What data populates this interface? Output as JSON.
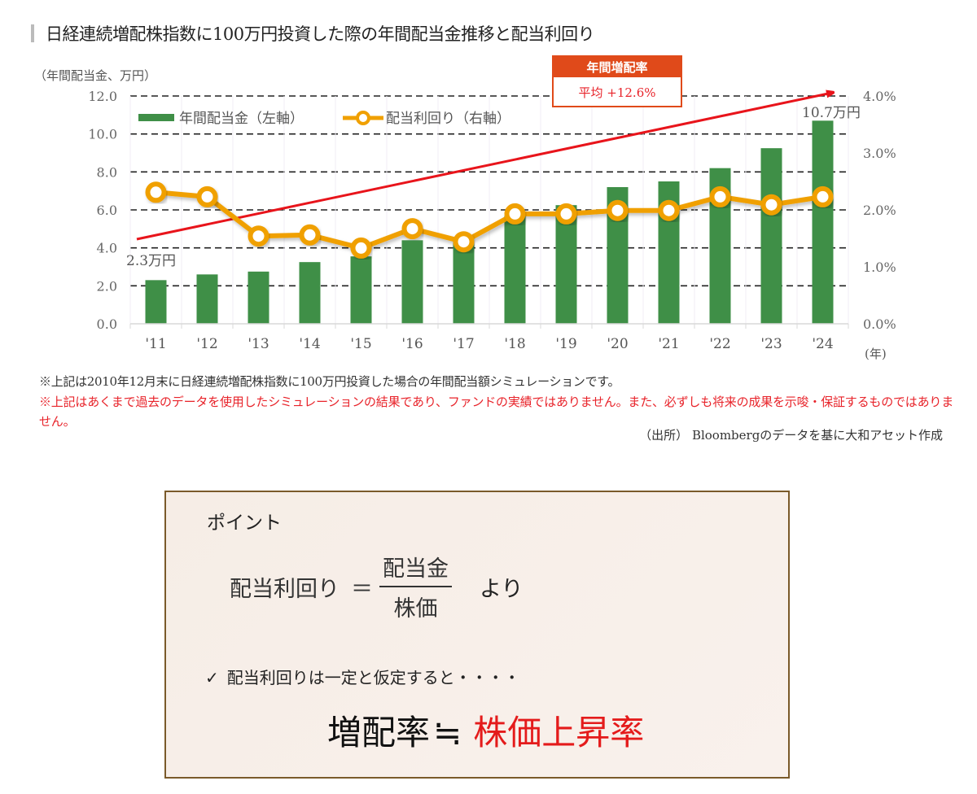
{
  "header": {
    "title": "日経連続増配株指数に100万円投資した際の年間配当金推移と配当利回り"
  },
  "chart_data": {
    "type": "bar+line",
    "title": "日経連続増配株指数に100万円投資した際の年間配当金推移と配当利回り",
    "left_axis_label": "（年間配当金、万円）",
    "x_unit_label": "(年)",
    "categories": [
      "'11",
      "'12",
      "'13",
      "'14",
      "'15",
      "'16",
      "'17",
      "'18",
      "'19",
      "'20",
      "'21",
      "'22",
      "'23",
      "'24"
    ],
    "left_ticks": [
      "0.0",
      "2.0",
      "4.0",
      "6.0",
      "8.0",
      "10.0",
      "12.0"
    ],
    "right_ticks": [
      "0.0%",
      "1.0%",
      "2.0%",
      "3.0%",
      "4.0%"
    ],
    "ylim_left": [
      0,
      12
    ],
    "ylim_right": [
      0,
      4
    ],
    "grid": "dashed horizontal",
    "legend_position": "top-left inside",
    "series": [
      {
        "name": "年間配当金（左軸）",
        "type": "bar",
        "axis": "left",
        "color": "#3f8f47",
        "values": [
          2.3,
          2.6,
          2.75,
          3.25,
          3.55,
          4.4,
          4.3,
          5.7,
          6.25,
          7.2,
          7.5,
          8.2,
          9.25,
          10.7
        ]
      },
      {
        "name": "配当利回り（右軸）",
        "type": "line",
        "axis": "right",
        "color": "#f0a000",
        "values": [
          2.31,
          2.23,
          1.54,
          1.56,
          1.33,
          1.67,
          1.44,
          1.93,
          1.93,
          1.99,
          1.99,
          2.23,
          2.09,
          2.23
        ]
      }
    ],
    "annotations": {
      "first_bar_label": "2.3万円",
      "last_bar_label": "10.7万円",
      "trend_arrow_color": "#e8141b",
      "callout_title": "年間増配率",
      "callout_value": "平均 +12.6%"
    }
  },
  "notes": {
    "note1": "※上記は2010年12月末に日経連続増配株指数に100万円投資した場合の年間配当額シミュレーションです。",
    "note2": "※上記はあくまで過去のデータを使用したシミュレーションの結果であり、ファンドの実績ではありません。また、必ずしも将来の成果を示唆・保証するものではありません。",
    "source": "（出所） Bloombergのデータを基に大和アセット作成"
  },
  "point_box": {
    "title": "ポイント",
    "formula_lhs": "配当利回り",
    "formula_eq": "＝",
    "formula_numerator": "配当金",
    "formula_denominator": "株価",
    "formula_suffix": "より",
    "check_mark": "✓",
    "check_text": "配当利回りは一定と仮定すると・・・・",
    "conclusion_lhs": "増配率",
    "conclusion_approx": "≒",
    "conclusion_rhs": "株価上昇率"
  },
  "colors": {
    "bar": "#3f8f47",
    "line": "#f0a000",
    "trend": "#e8141b",
    "callout": "#e04a1a",
    "warning_text": "#e8232a",
    "box_border": "#7a5a2a"
  }
}
